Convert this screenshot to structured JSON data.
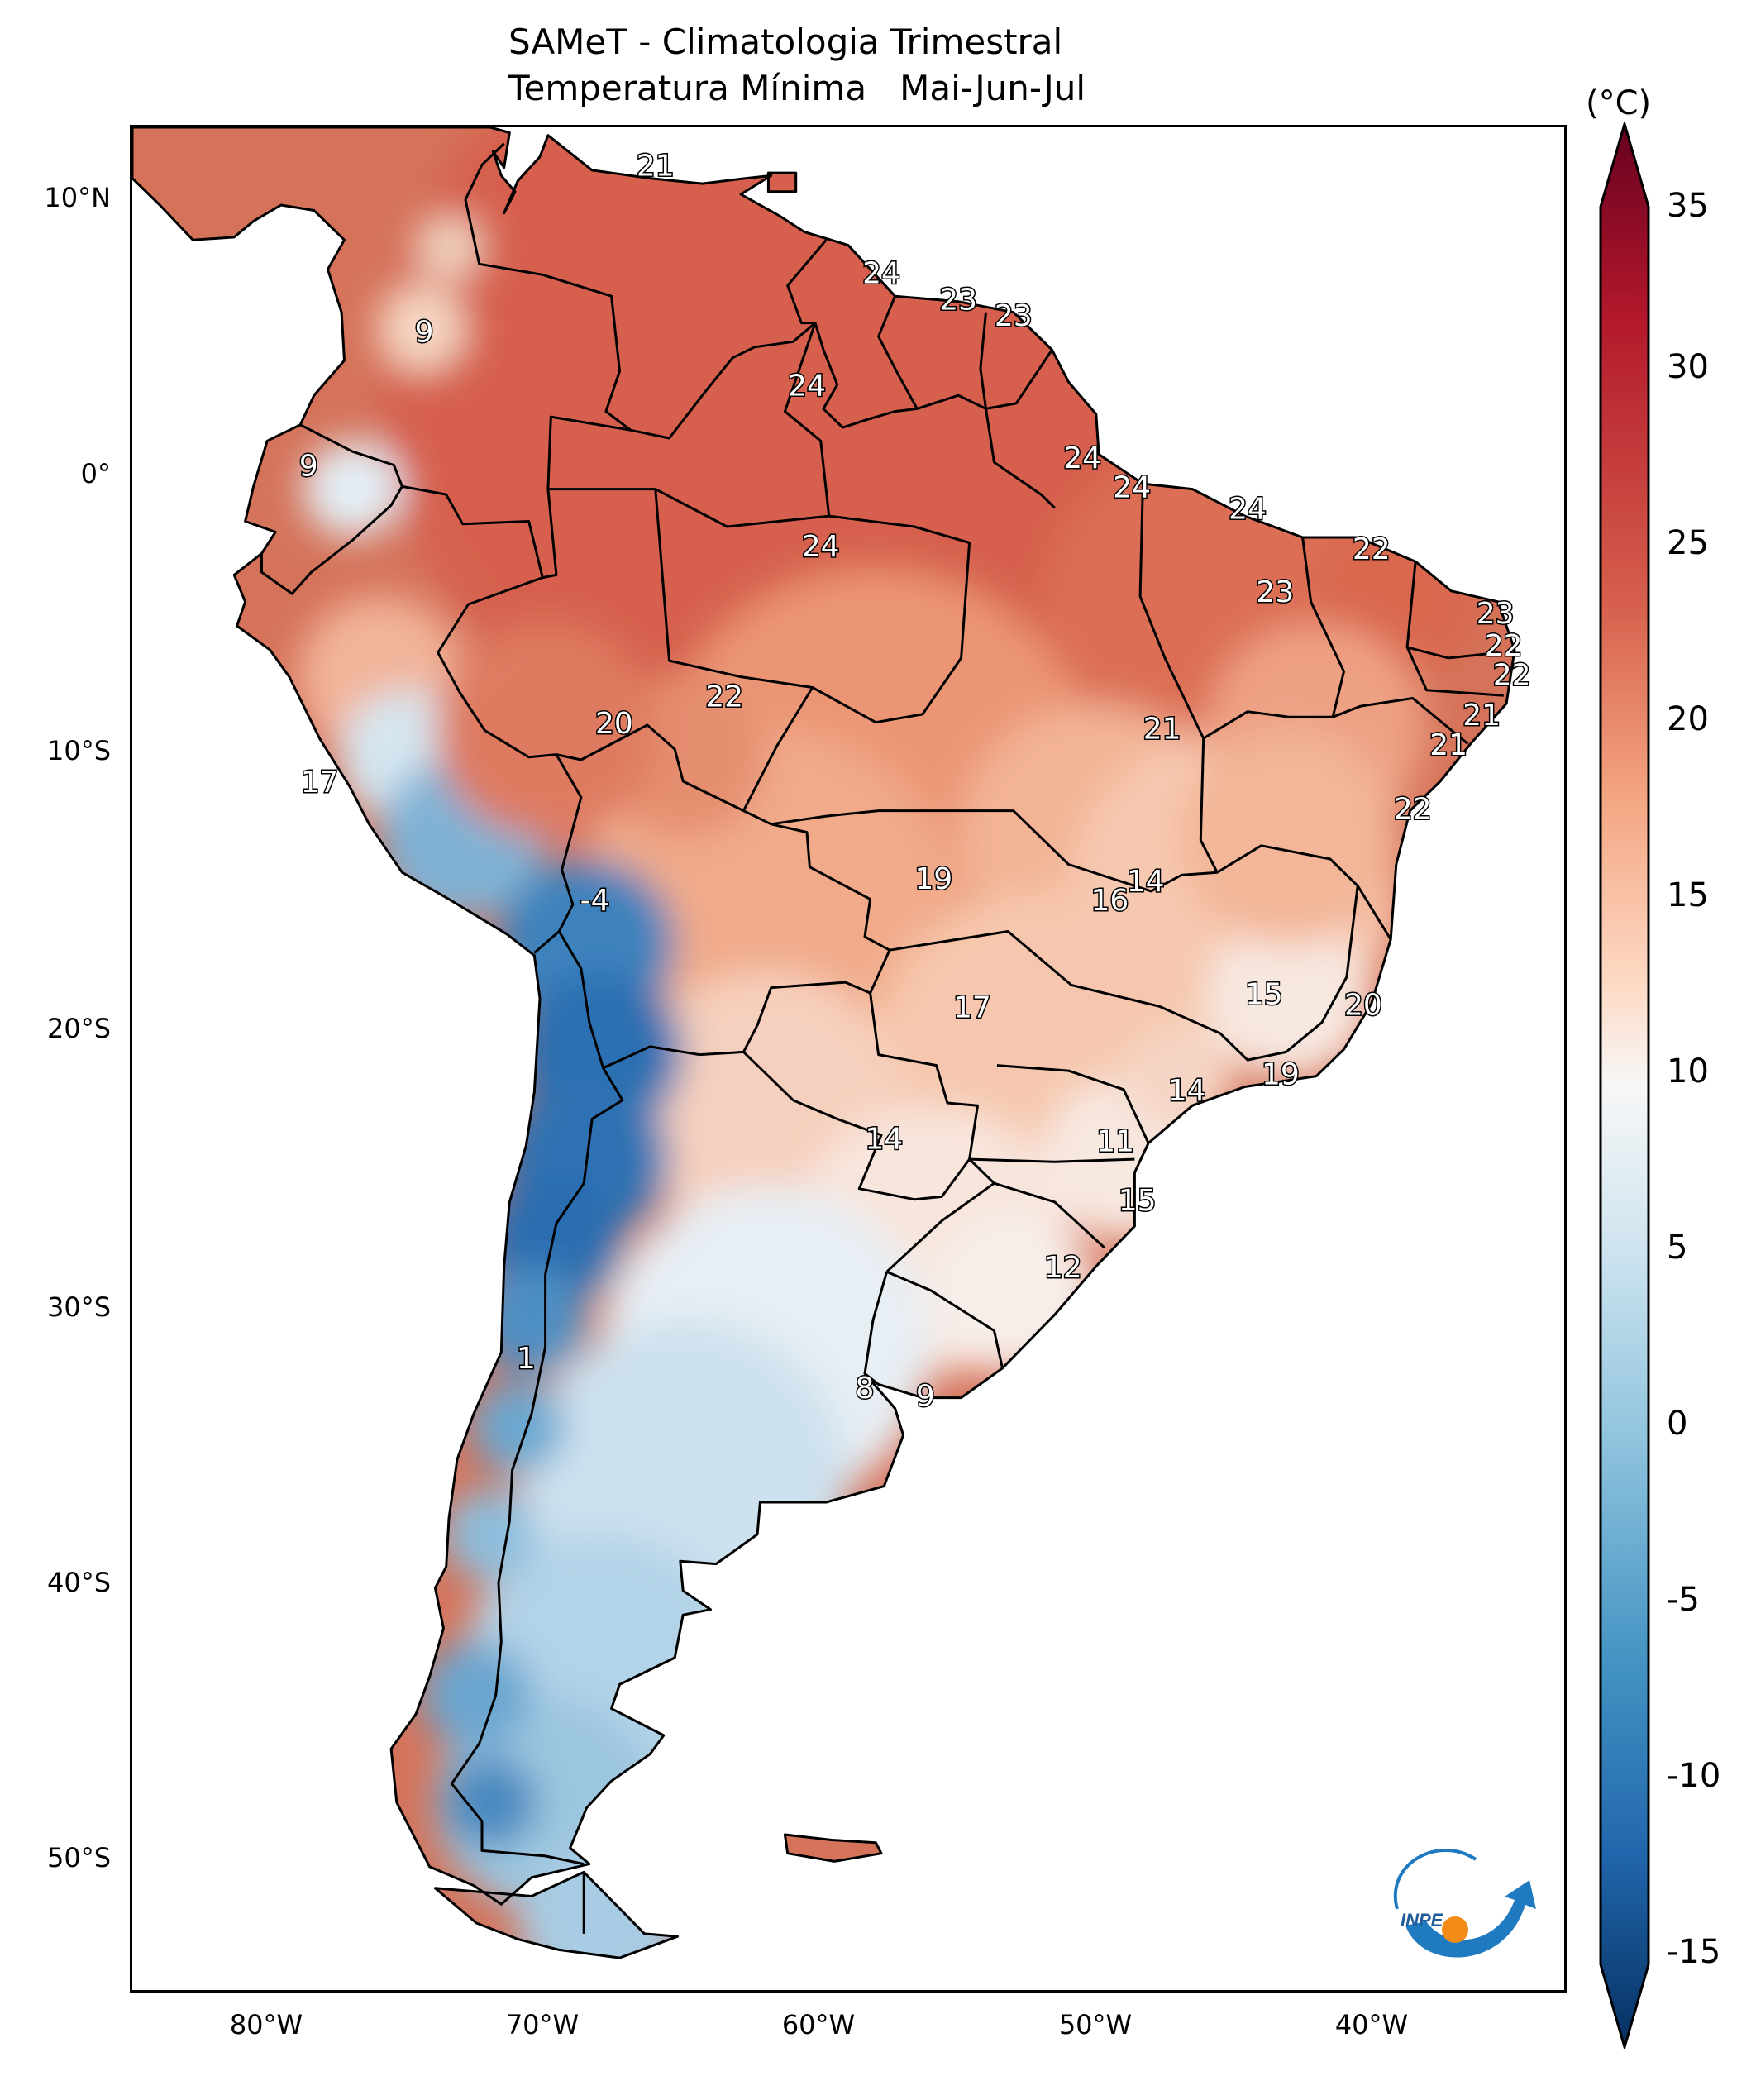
{
  "title": {
    "line1": "SAMeT - Climatologia Trimestral",
    "line2": "Temperatura Mínima   Mai-Jun-Jul"
  },
  "axes": {
    "y_labels": [
      "10°N",
      "0°",
      "10°S",
      "20°S",
      "30°S",
      "40°S",
      "50°S"
    ],
    "x_labels": [
      "80°W",
      "70°W",
      "60°W",
      "50°W",
      "40°W"
    ]
  },
  "colorbar": {
    "unit": "(°C)",
    "ticks": [
      "35",
      "30",
      "25",
      "20",
      "15",
      "10",
      "5",
      "0",
      "-5",
      "-10",
      "-15"
    ],
    "range": [
      -15,
      35
    ],
    "colors": {
      "low": "#053061",
      "mid": "#f7f7f7",
      "high": "#67001f"
    }
  },
  "logo": {
    "text": "INPE"
  },
  "chart_data": {
    "type": "map",
    "lon_range": [
      -85,
      -33
    ],
    "lat_range": [
      -57,
      12.5
    ],
    "station_labels": [
      {
        "value": "21",
        "lon": -66,
        "lat": 11
      },
      {
        "value": "9",
        "lon": -74.4,
        "lat": 4.8
      },
      {
        "value": "9",
        "lon": -78.6,
        "lat": -0.2
      },
      {
        "value": "24",
        "lon": -57.8,
        "lat": 7
      },
      {
        "value": "23",
        "lon": -55,
        "lat": 6
      },
      {
        "value": "23",
        "lon": -53,
        "lat": 5.4
      },
      {
        "value": "24",
        "lon": -60.5,
        "lat": 2.8
      },
      {
        "value": "24",
        "lon": -50.5,
        "lat": 0.1
      },
      {
        "value": "24",
        "lon": -48.7,
        "lat": -1
      },
      {
        "value": "24",
        "lon": -44.5,
        "lat": -1.8
      },
      {
        "value": "24",
        "lon": -60,
        "lat": -3.2
      },
      {
        "value": "22",
        "lon": -40,
        "lat": -3.3
      },
      {
        "value": "23",
        "lon": -43.5,
        "lat": -4.9
      },
      {
        "value": "23",
        "lon": -35.5,
        "lat": -5.7
      },
      {
        "value": "22",
        "lon": -35.2,
        "lat": -6.9
      },
      {
        "value": "22",
        "lon": -34.9,
        "lat": -8
      },
      {
        "value": "22",
        "lon": -63.5,
        "lat": -8.8
      },
      {
        "value": "20",
        "lon": -67.5,
        "lat": -9.8
      },
      {
        "value": "21",
        "lon": -36,
        "lat": -9.5
      },
      {
        "value": "21",
        "lon": -37.2,
        "lat": -10.6
      },
      {
        "value": "21",
        "lon": -47.6,
        "lat": -10
      },
      {
        "value": "17",
        "lon": -78.2,
        "lat": -12
      },
      {
        "value": "22",
        "lon": -38.5,
        "lat": -13
      },
      {
        "value": "19",
        "lon": -55.9,
        "lat": -15.6
      },
      {
        "value": "14",
        "lon": -48.2,
        "lat": -15.7
      },
      {
        "value": "16",
        "lon": -49.5,
        "lat": -16.4
      },
      {
        "value": "-4",
        "lon": -68.2,
        "lat": -16.4
      },
      {
        "value": "15",
        "lon": -43.9,
        "lat": -19.9
      },
      {
        "value": "17",
        "lon": -54.5,
        "lat": -20.4
      },
      {
        "value": "20",
        "lon": -40.3,
        "lat": -20.3
      },
      {
        "value": "19",
        "lon": -43.3,
        "lat": -22.9
      },
      {
        "value": "14",
        "lon": -46.7,
        "lat": -23.5
      },
      {
        "value": "14",
        "lon": -57.7,
        "lat": -25.3
      },
      {
        "value": "11",
        "lon": -49.3,
        "lat": -25.4
      },
      {
        "value": "15",
        "lon": -48.5,
        "lat": -27.6
      },
      {
        "value": "12",
        "lon": -51.2,
        "lat": -30.1
      },
      {
        "value": "1",
        "lon": -70.7,
        "lat": -33.5
      },
      {
        "value": "8",
        "lon": -58.4,
        "lat": -34.6
      },
      {
        "value": "9",
        "lon": -56.2,
        "lat": -34.9
      }
    ]
  }
}
